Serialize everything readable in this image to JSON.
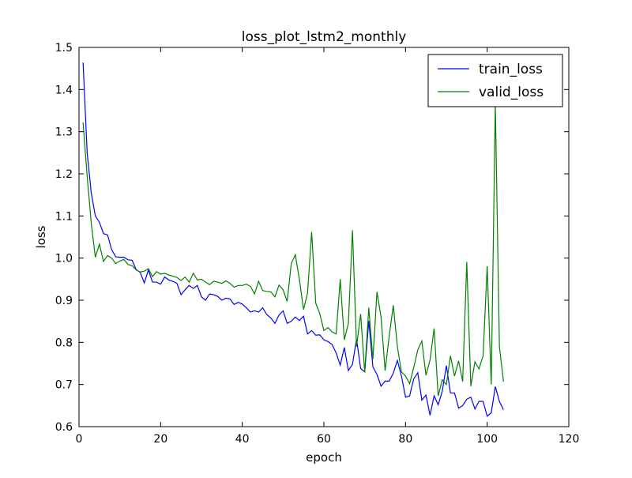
{
  "chart_data": {
    "type": "line",
    "title": "loss_plot_lstm2_monthly",
    "xlabel": "epoch",
    "ylabel": "loss",
    "xlim": [
      0,
      120
    ],
    "ylim": [
      0.6,
      1.5
    ],
    "xticks": [
      0,
      20,
      40,
      60,
      80,
      100,
      120
    ],
    "xtick_labels": [
      "0",
      "20",
      "40",
      "60",
      "80",
      "100",
      "120"
    ],
    "yticks": [
      0.6,
      0.7,
      0.8,
      0.9,
      1.0,
      1.1,
      1.2,
      1.3,
      1.4,
      1.5
    ],
    "ytick_labels": [
      "0.6",
      "0.7",
      "0.8",
      "0.9",
      "1.0",
      "1.1",
      "1.2",
      "1.3",
      "1.4",
      "1.5"
    ],
    "grid": false,
    "legend_position": "top-right",
    "x": [
      1,
      2,
      3,
      4,
      5,
      6,
      7,
      8,
      9,
      10,
      11,
      12,
      13,
      14,
      15,
      16,
      17,
      18,
      19,
      20,
      21,
      22,
      23,
      24,
      25,
      26,
      27,
      28,
      29,
      30,
      31,
      32,
      33,
      34,
      35,
      36,
      37,
      38,
      39,
      40,
      41,
      42,
      43,
      44,
      45,
      46,
      47,
      48,
      49,
      50,
      51,
      52,
      53,
      54,
      55,
      56,
      57,
      58,
      59,
      60,
      61,
      62,
      63,
      64,
      65,
      66,
      67,
      68,
      69,
      70,
      71,
      72,
      73,
      74,
      75,
      76,
      77,
      78,
      79,
      80,
      81,
      82,
      83,
      84,
      85,
      86,
      87,
      88,
      89,
      90,
      91,
      92,
      93,
      94,
      95,
      96,
      97,
      98,
      99,
      100,
      101,
      102,
      103,
      104
    ],
    "series": [
      {
        "name": "train_loss",
        "color": "#0000ff",
        "values": [
          1.464,
          1.25,
          1.155,
          1.1,
          1.085,
          1.058,
          1.055,
          1.02,
          1.003,
          1.002,
          1.002,
          0.996,
          0.995,
          0.973,
          0.966,
          0.941,
          0.972,
          0.943,
          0.943,
          0.938,
          0.955,
          0.948,
          0.945,
          0.94,
          0.913,
          0.925,
          0.935,
          0.928,
          0.935,
          0.908,
          0.9,
          0.915,
          0.913,
          0.909,
          0.9,
          0.905,
          0.903,
          0.89,
          0.895,
          0.891,
          0.882,
          0.872,
          0.875,
          0.872,
          0.882,
          0.866,
          0.858,
          0.845,
          0.865,
          0.875,
          0.845,
          0.85,
          0.86,
          0.852,
          0.862,
          0.82,
          0.828,
          0.817,
          0.818,
          0.806,
          0.802,
          0.795,
          0.775,
          0.746,
          0.788,
          0.733,
          0.748,
          0.808,
          0.738,
          0.73,
          0.851,
          0.742,
          0.724,
          0.696,
          0.708,
          0.708,
          0.727,
          0.757,
          0.72,
          0.67,
          0.673,
          0.713,
          0.728,
          0.663,
          0.675,
          0.627,
          0.673,
          0.652,
          0.684,
          0.745,
          0.68,
          0.68,
          0.644,
          0.65,
          0.665,
          0.67,
          0.642,
          0.66,
          0.66,
          0.625,
          0.633,
          0.695,
          0.66,
          0.64
        ]
      },
      {
        "name": "valid_loss",
        "color": "#008000",
        "values": [
          1.322,
          1.194,
          1.083,
          1.002,
          1.033,
          0.992,
          1.006,
          1.0,
          0.987,
          0.993,
          0.997,
          0.985,
          0.982,
          0.972,
          0.967,
          0.969,
          0.975,
          0.956,
          0.968,
          0.962,
          0.964,
          0.96,
          0.957,
          0.954,
          0.947,
          0.955,
          0.943,
          0.964,
          0.948,
          0.95,
          0.943,
          0.937,
          0.945,
          0.943,
          0.94,
          0.946,
          0.94,
          0.931,
          0.935,
          0.935,
          0.938,
          0.933,
          0.915,
          0.945,
          0.923,
          0.921,
          0.92,
          0.908,
          0.936,
          0.925,
          0.897,
          0.987,
          1.008,
          0.949,
          0.878,
          0.917,
          1.062,
          0.893,
          0.868,
          0.828,
          0.835,
          0.825,
          0.82,
          0.95,
          0.806,
          0.845,
          1.066,
          0.79,
          0.867,
          0.729,
          0.882,
          0.76,
          0.92,
          0.86,
          0.733,
          0.815,
          0.888,
          0.79,
          0.73,
          0.72,
          0.702,
          0.74,
          0.782,
          0.803,
          0.722,
          0.758,
          0.833,
          0.673,
          0.711,
          0.7,
          0.768,
          0.72,
          0.756,
          0.707,
          0.991,
          0.696,
          0.754,
          0.737,
          0.768,
          0.981,
          0.7,
          1.365,
          0.79,
          0.707
        ]
      }
    ]
  }
}
